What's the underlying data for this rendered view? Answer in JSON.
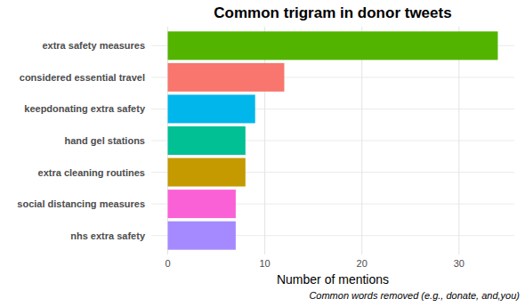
{
  "chart_data": {
    "type": "bar",
    "orientation": "horizontal",
    "title": "Common trigram in donor tweets",
    "x_label": "Number of mentions",
    "caption": "Common words removed (e.g., donate, and,you)",
    "categories": [
      "extra safety measures",
      "considered essential travel",
      "keepdonating extra safety",
      "hand gel stations",
      "extra cleaning routines",
      "social distancing measures",
      "nhs extra safety"
    ],
    "values": [
      34,
      12,
      9,
      8,
      8,
      7,
      7
    ],
    "colors": [
      "#53B400",
      "#F8766D",
      "#00B6EB",
      "#00C094",
      "#C49A00",
      "#FB61D7",
      "#A58AFF"
    ],
    "xlim": [
      -1.7,
      35.7
    ],
    "xticks": [
      0,
      10,
      20,
      30
    ],
    "grid": true
  }
}
